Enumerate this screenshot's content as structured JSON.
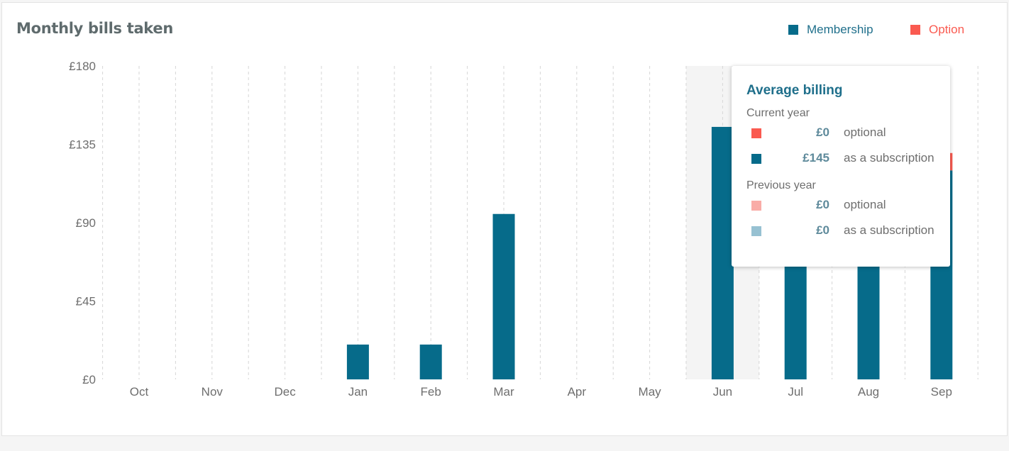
{
  "title": "Monthly bills taken",
  "legend": {
    "membership": {
      "label": "Membership",
      "color": "#066b8a"
    },
    "option": {
      "label": "Option",
      "color": "#fa5a50"
    }
  },
  "chart_data": {
    "type": "bar",
    "stacked": true,
    "categories": [
      "Oct",
      "Nov",
      "Dec",
      "Jan",
      "Feb",
      "Mar",
      "Apr",
      "May",
      "Jun",
      "Jul",
      "Aug",
      "Sep"
    ],
    "series": [
      {
        "name": "Membership",
        "color": "#066b8a",
        "values": [
          0,
          0,
          0,
          20,
          20,
          95,
          0,
          0,
          145,
          145,
          145,
          120
        ]
      },
      {
        "name": "Option",
        "color": "#fa5a50",
        "values": [
          0,
          0,
          0,
          0,
          0,
          0,
          0,
          0,
          0,
          0,
          0,
          10
        ]
      }
    ],
    "yticks": [
      "£0",
      "£45",
      "£90",
      "£135",
      "£180"
    ],
    "ylim": [
      0,
      180
    ],
    "grid": "vertical dashed",
    "legend_position": "top-right",
    "highlighted_category": "Jun"
  },
  "tooltip": {
    "title": "Average billing",
    "current_year": {
      "label": "Current year",
      "rows": [
        {
          "value": "£0",
          "label": "optional",
          "color": "#fa5a50"
        },
        {
          "value": "£145",
          "label": "as a subscription",
          "color": "#066b8a"
        }
      ]
    },
    "previous_year": {
      "label": "Previous year",
      "rows": [
        {
          "value": "£0",
          "label": "optional",
          "color": "#f9aca7"
        },
        {
          "value": "£0",
          "label": "as a subscription",
          "color": "#97c1d2"
        }
      ]
    }
  }
}
